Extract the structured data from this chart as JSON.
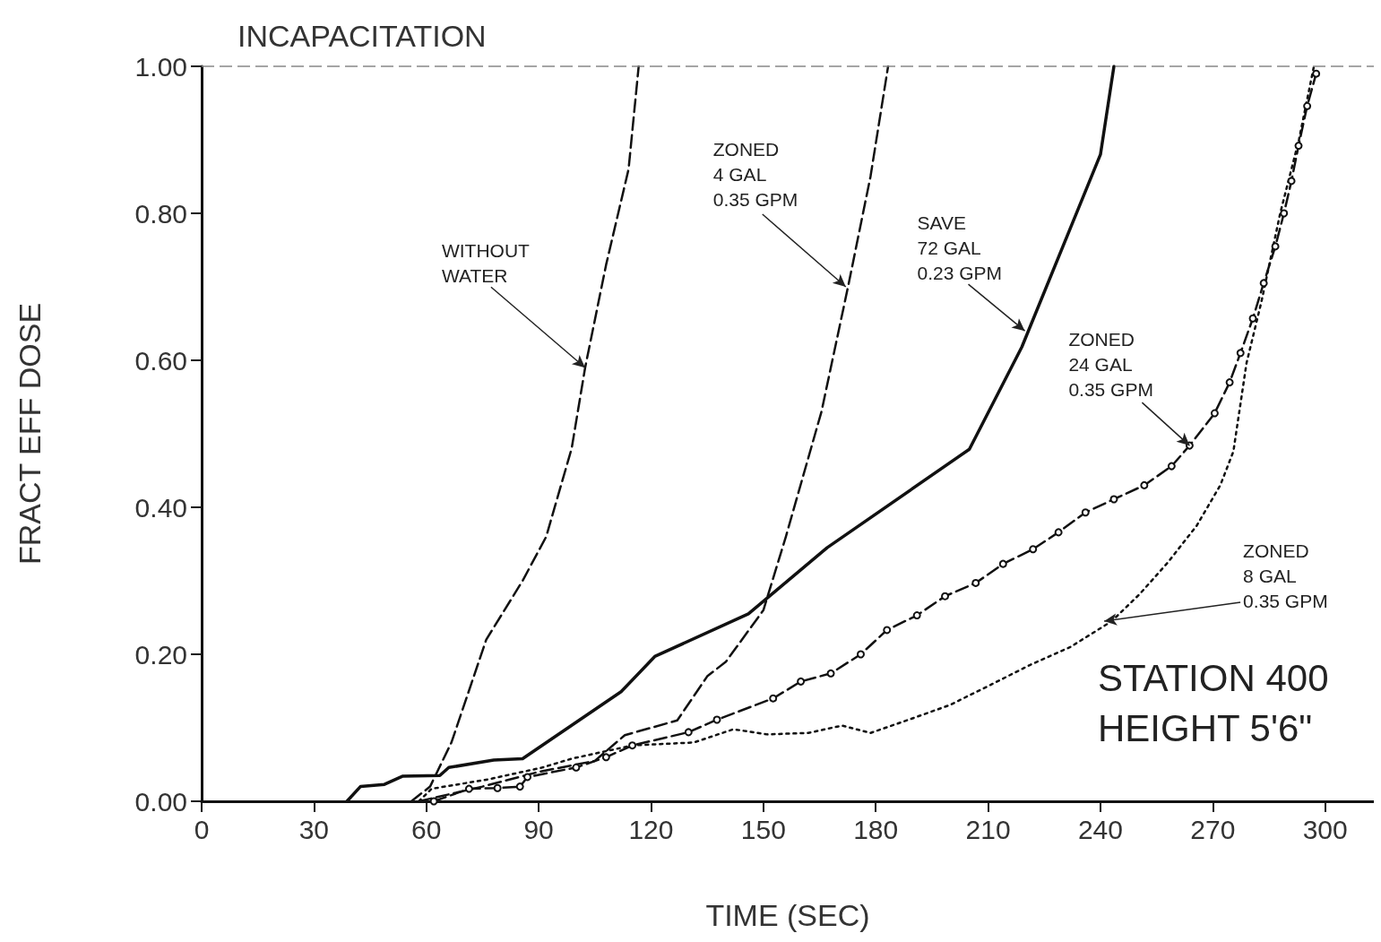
{
  "chart_data": {
    "type": "line",
    "title": "INCAPACITATION",
    "xlabel": "TIME (SEC)",
    "ylabel": "FRACT EFF DOSE",
    "xlim": [
      0,
      313
    ],
    "ylim": [
      0,
      1
    ],
    "xticks": [
      0,
      30,
      60,
      90,
      120,
      150,
      180,
      210,
      240,
      270,
      300
    ],
    "yticks": [
      {
        "value": 0,
        "label": "0.00"
      },
      {
        "value": 0.2,
        "label": "0.20"
      },
      {
        "value": 0.4,
        "label": "0.40"
      },
      {
        "value": 0.6,
        "label": "0.60"
      },
      {
        "value": 0.8,
        "label": "0.80"
      },
      {
        "value": 1,
        "label": "1.00"
      }
    ],
    "grid": false,
    "marker": "none",
    "series": [
      {
        "color": "#111111",
        "line_style": "dashed",
        "x": [
          56,
          61,
          66.7,
          76,
          85.7,
          92,
          98.8,
          102.4,
          108,
          114,
          116.7
        ],
        "values": [
          0,
          0.02,
          0.08,
          0.22,
          0.3,
          0.36,
          0.48,
          0.59,
          0.73,
          0.86,
          1
        ]
      },
      {
        "color": "#111111",
        "line_style": "dashed",
        "x": [
          58,
          75,
          90,
          105,
          113,
          127,
          135,
          140,
          150,
          156,
          165.5,
          172.6,
          178.6,
          183.3
        ],
        "values": [
          0,
          0.02,
          0.04,
          0.055,
          0.09,
          0.11,
          0.17,
          0.19,
          0.26,
          0.36,
          0.53,
          0.7,
          0.85,
          1
        ]
      },
      {
        "color": "#111111",
        "line_style": "solid",
        "x": [
          38.8,
          42.4,
          48.8,
          53.6,
          63.6,
          66,
          78,
          85.7,
          112,
          121,
          146,
          167,
          205,
          219,
          240,
          243.6
        ],
        "values": [
          0,
          0.02,
          0.023,
          0.034,
          0.035,
          0.046,
          0.056,
          0.058,
          0.149,
          0.197,
          0.255,
          0.345,
          0.479,
          0.618,
          0.88,
          1
        ]
      },
      {
        "color": "#111111",
        "line_style": "dashed",
        "marker": "circle",
        "x": [
          62,
          71.4,
          79,
          85,
          87,
          100,
          108,
          115,
          130,
          137.6,
          152.6,
          160,
          168,
          176,
          183,
          191,
          198.5,
          206.7,
          214,
          222,
          228.8,
          236,
          243.6,
          251.7,
          259,
          263.8,
          270.5,
          274.5,
          277.4,
          280.7,
          283.6,
          286.7,
          289,
          291,
          292.9,
          295.2,
          297.6
        ],
        "values": [
          0,
          0.017,
          0.018,
          0.02,
          0.033,
          0.046,
          0.06,
          0.076,
          0.094,
          0.111,
          0.14,
          0.163,
          0.174,
          0.2,
          0.233,
          0.253,
          0.279,
          0.297,
          0.323,
          0.343,
          0.366,
          0.393,
          0.411,
          0.43,
          0.456,
          0.484,
          0.528,
          0.57,
          0.61,
          0.657,
          0.705,
          0.755,
          0.8,
          0.844,
          0.892,
          0.946,
          0.99
        ]
      },
      {
        "color": "#111111",
        "line_style": "dotted",
        "x": [
          58,
          61.4,
          76.7,
          91,
          98.8,
          115,
          131.4,
          142,
          151,
          162,
          171,
          178.6,
          188.8,
          199.8,
          210.5,
          221,
          232,
          243,
          250.5,
          258,
          265.7,
          272,
          275.5,
          279,
          283,
          288,
          293,
          297
        ],
        "values": [
          0,
          0.017,
          0.03,
          0.046,
          0.058,
          0.076,
          0.08,
          0.098,
          0.091,
          0.093,
          0.103,
          0.093,
          0.111,
          0.131,
          0.158,
          0.185,
          0.21,
          0.245,
          0.282,
          0.325,
          0.375,
          0.43,
          0.476,
          0.596,
          0.68,
          0.8,
          0.9,
          1
        ]
      }
    ],
    "ref_lines": [
      {
        "axis": "y",
        "value": 1,
        "line_style": "dashed",
        "color": "#888888"
      }
    ],
    "annotations": [
      {
        "text": "WITHOUT\nWATER",
        "x": 102.4,
        "y": 0.59
      },
      {
        "text": "ZONED\n4 GAL\n0.35 GPM",
        "x": 172,
        "y": 0.7
      },
      {
        "text": "SAVE\n72 GAL\n0.23 GPM",
        "x": 219.8,
        "y": 0.64
      },
      {
        "text": "ZONED\n24 GAL\n0.35 GPM",
        "x": 263.8,
        "y": 0.484
      },
      {
        "text": "ZONED\n8 GAL\n0.35 GPM",
        "x": 241,
        "y": 0.245
      },
      "STATION 400\nHEIGHT 5'6\""
    ]
  }
}
